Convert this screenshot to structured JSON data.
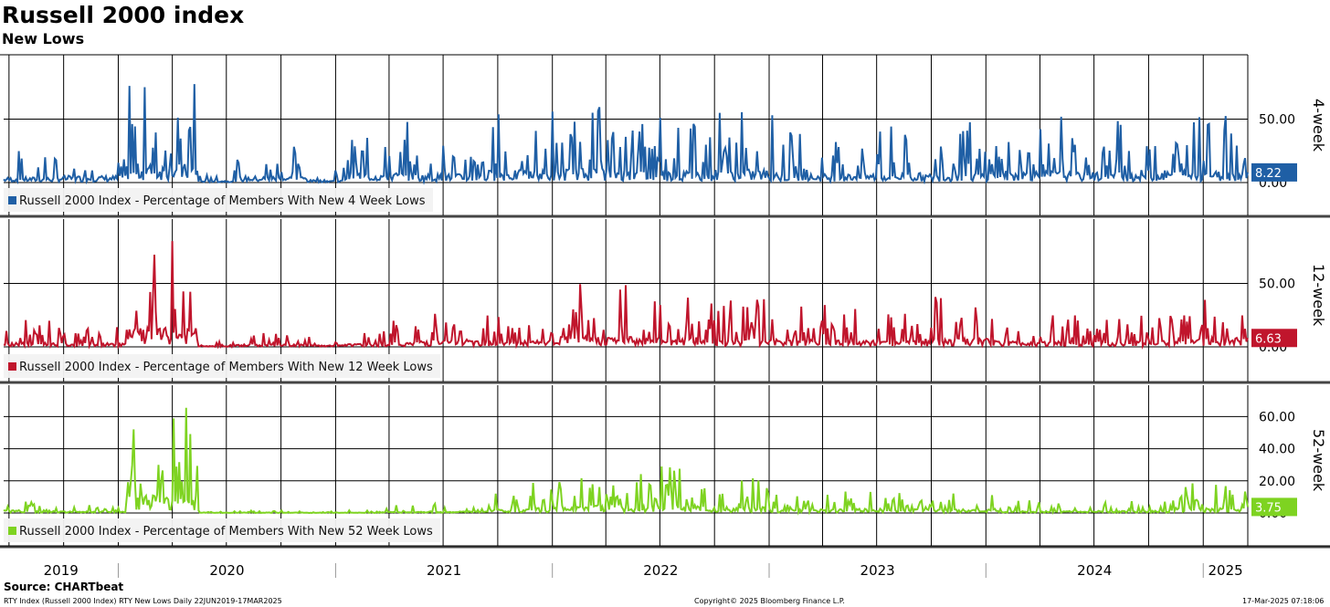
{
  "header": {
    "title": "Russell 2000 index",
    "subtitle": "New Lows"
  },
  "footer": {
    "source": "Source: CHARTbeat",
    "left": "RTY Index (Russell 2000 Index) RTY New Lows  Daily 22JUN2019-17MAR2025",
    "center": "Copyright© 2025 Bloomberg Finance L.P.",
    "right": "17-Mar-2025 07:18:06"
  },
  "colors": {
    "four_week": "#1f5fa5",
    "twelve_week": "#c0152c",
    "fifty_two_week": "#7ed321",
    "grid": "#000000"
  },
  "chart_data": [
    {
      "type": "line",
      "panel_label": "4-week",
      "legend": "Russell 2000 Index - Percentage of Members With New 4 Week Lows",
      "last_value": "8.22",
      "ylim": [
        0,
        95
      ],
      "yticks": [
        "50.00",
        "0.00"
      ],
      "ytick_values": [
        50,
        0
      ],
      "x_range": [
        "2019-06-22",
        "2025-03-17"
      ],
      "x": [
        "2019-07",
        "2019-09",
        "2019-11",
        "2020-01",
        "2020-03",
        "2020-05",
        "2020-07",
        "2020-09",
        "2020-11",
        "2021-01",
        "2021-03",
        "2021-05",
        "2021-07",
        "2021-09",
        "2021-11",
        "2022-01",
        "2022-03",
        "2022-05",
        "2022-07",
        "2022-09",
        "2022-11",
        "2023-01",
        "2023-03",
        "2023-05",
        "2023-07",
        "2023-09",
        "2023-11",
        "2024-01",
        "2024-03",
        "2024-05",
        "2024-07",
        "2024-09",
        "2024-11",
        "2025-01",
        "2025-03"
      ],
      "values": [
        25,
        12,
        32,
        10,
        88,
        8,
        10,
        30,
        6,
        12,
        48,
        30,
        40,
        20,
        58,
        30,
        68,
        28,
        55,
        38,
        62,
        30,
        40,
        28,
        45,
        30,
        40,
        48,
        55,
        35,
        50,
        28,
        58,
        55,
        8
      ],
      "grid": true
    },
    {
      "type": "line",
      "panel_label": "12-week",
      "legend": "Russell 2000 Index - Percentage of Members With New 12 Week Lows",
      "last_value": "6.63",
      "ylim": [
        0,
        95
      ],
      "yticks": [
        "50.00",
        "0.00"
      ],
      "ytick_values": [
        50,
        0
      ],
      "x_range": [
        "2019-06-22",
        "2025-03-17"
      ],
      "x": [
        "2019-07",
        "2019-09",
        "2019-11",
        "2020-01",
        "2020-03",
        "2020-05",
        "2020-07",
        "2020-09",
        "2020-11",
        "2021-01",
        "2021-03",
        "2021-05",
        "2021-07",
        "2021-09",
        "2021-11",
        "2022-01",
        "2022-03",
        "2022-05",
        "2022-07",
        "2022-09",
        "2022-11",
        "2023-01",
        "2023-03",
        "2023-05",
        "2023-07",
        "2023-09",
        "2023-11",
        "2024-01",
        "2024-03",
        "2024-05",
        "2024-07",
        "2024-09",
        "2024-11",
        "2025-01",
        "2025-03"
      ],
      "values": [
        22,
        8,
        18,
        5,
        88,
        4,
        4,
        12,
        3,
        8,
        14,
        22,
        34,
        20,
        30,
        26,
        50,
        30,
        44,
        36,
        40,
        15,
        35,
        20,
        30,
        26,
        40,
        15,
        28,
        20,
        25,
        14,
        28,
        42,
        7
      ],
      "grid": true
    },
    {
      "type": "line",
      "panel_label": "52-week",
      "legend": "Russell 2000 Index - Percentage of Members With New 52 Week Lows",
      "last_value": "3.75",
      "ylim": [
        -20,
        75
      ],
      "yticks": [
        "60.00",
        "40.00",
        "20.00",
        "0.00"
      ],
      "ytick_values": [
        60,
        40,
        20,
        0
      ],
      "x_range": [
        "2019-06-22",
        "2025-03-17"
      ],
      "x": [
        "2019-07",
        "2019-09",
        "2019-11",
        "2020-01",
        "2020-03",
        "2020-05",
        "2020-07",
        "2020-09",
        "2020-11",
        "2021-01",
        "2021-03",
        "2021-05",
        "2021-07",
        "2021-09",
        "2021-11",
        "2022-01",
        "2022-03",
        "2022-05",
        "2022-07",
        "2022-09",
        "2022-11",
        "2023-01",
        "2023-03",
        "2023-05",
        "2023-07",
        "2023-09",
        "2023-11",
        "2024-01",
        "2024-03",
        "2024-05",
        "2024-07",
        "2024-09",
        "2024-11",
        "2025-01",
        "2025-03"
      ],
      "values": [
        12,
        4,
        6,
        3,
        68,
        2,
        1,
        2,
        1,
        1,
        2,
        5,
        6,
        4,
        14,
        20,
        30,
        22,
        32,
        18,
        22,
        8,
        14,
        6,
        16,
        10,
        14,
        5,
        8,
        5,
        8,
        4,
        9,
        19,
        3.75
      ],
      "grid": true
    }
  ],
  "x_axis": {
    "year_labels": [
      "2019",
      "2020",
      "2021",
      "2022",
      "2023",
      "2024",
      "2025"
    ]
  }
}
